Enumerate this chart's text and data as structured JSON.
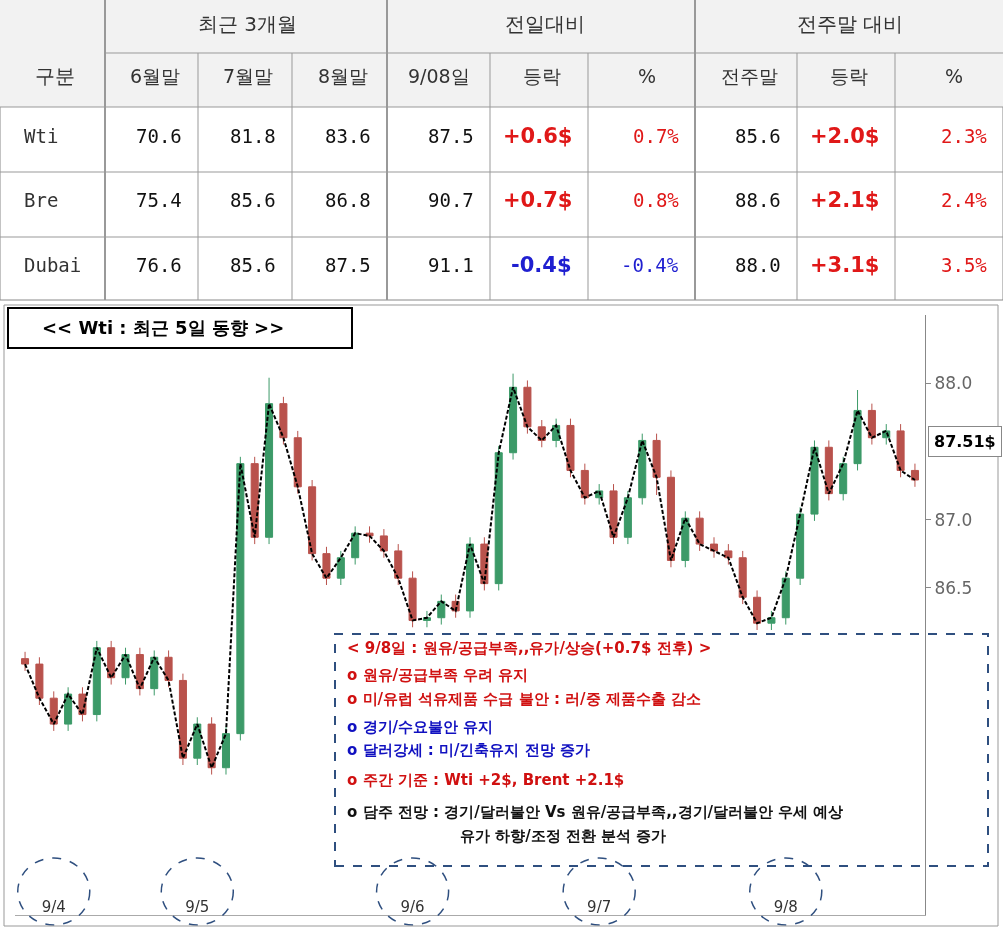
{
  "chart_data": [
    {
      "type": "other",
      "ylabel": "구분",
      "annotations": [
        "최근 3개월",
        "전일대비",
        "전주말 대비"
      ],
      "categories": [
        "6월말",
        "7월말",
        "8월말",
        "9/08일",
        "등락",
        "%",
        "전주말",
        "등락",
        "%"
      ],
      "y_categories": [
        "Wti",
        "Bre",
        "Dubai"
      ],
      "cell_labels": [
        [
          "70.6",
          "81.8",
          "83.6",
          "87.5",
          "+0.6$",
          "0.7%",
          "85.6",
          "+2.0$",
          "2.3%"
        ],
        [
          "75.4",
          "85.6",
          "86.8",
          "90.7",
          "+0.7$",
          "0.8%",
          "88.6",
          "+2.1$",
          "2.4%"
        ],
        [
          "76.6",
          "85.6",
          "87.5",
          "91.1",
          "-0.4$",
          "-0.4%",
          "88.0",
          "+3.1$",
          "3.5%"
        ]
      ]
    },
    {
      "type": "candlestick",
      "title": "<< Wti : 최근 5일 동향 >>",
      "categories": [
        null,
        null,
        "9/4",
        null,
        null,
        null,
        null,
        null,
        null,
        null,
        null,
        null,
        "9/5",
        null,
        null,
        null,
        null,
        null,
        null,
        null,
        null,
        null,
        null,
        null,
        null,
        null,
        null,
        "9/6",
        null,
        null,
        null,
        null,
        null,
        null,
        null,
        null,
        null,
        null,
        null,
        null,
        "9/7",
        null,
        null,
        null,
        null,
        null,
        null,
        null,
        null,
        null,
        null,
        null,
        null,
        "9/8",
        null,
        null,
        null,
        null,
        null,
        null,
        null,
        null,
        null
      ],
      "colors": [
        "#b9524c",
        "#b9524c",
        "#b9524c",
        "#3c9a68",
        "#b9524c",
        "#3c9a68",
        "#b9524c",
        "#3c9a68",
        "#b9524c",
        "#3c9a68",
        "#b9524c",
        "#b9524c",
        "#3c9a68",
        "#b9524c",
        "#3c9a68",
        "#3c9a68",
        "#b9524c",
        "#3c9a68",
        "#b9524c",
        "#b9524c",
        "#b9524c",
        "#b9524c",
        "#3c9a68",
        "#3c9a68",
        "#b9524c",
        "#b9524c",
        "#b9524c",
        "#b9524c",
        "#3c9a68",
        "#3c9a68",
        "#b9524c",
        "#3c9a68",
        "#b9524c",
        "#3c9a68",
        "#3c9a68",
        "#b9524c",
        "#b9524c",
        "#3c9a68",
        "#b9524c",
        "#b9524c",
        "#3c9a68",
        "#b9524c",
        "#3c9a68",
        "#3c9a68",
        "#b9524c",
        "#b9524c",
        "#3c9a68",
        "#b9524c",
        "#b9524c",
        "#b9524c",
        "#b9524c",
        "#b9524c",
        "#3c9a68",
        "#3c9a68",
        "#3c9a68",
        "#3c9a68",
        "#b9524c",
        "#3c9a68",
        "#3c9a68",
        "#b9524c",
        "#3c9a68",
        "#b9524c",
        "#b9524c"
      ],
      "ohlc": [
        [
          85.98,
          86.03,
          85.89,
          85.94
        ],
        [
          85.94,
          85.99,
          85.64,
          85.69
        ],
        [
          85.69,
          85.74,
          85.45,
          85.5
        ],
        [
          85.5,
          85.77,
          85.45,
          85.72
        ],
        [
          85.72,
          85.77,
          85.52,
          85.57
        ],
        [
          85.57,
          86.11,
          85.52,
          86.06
        ],
        [
          86.06,
          86.11,
          85.79,
          85.84
        ],
        [
          85.84,
          86.06,
          85.79,
          86.01
        ],
        [
          86.01,
          86.06,
          85.71,
          85.76
        ],
        [
          85.76,
          86.04,
          85.71,
          85.99
        ],
        [
          85.99,
          86.04,
          85.77,
          85.82
        ],
        [
          85.82,
          85.87,
          85.2,
          85.25
        ],
        [
          85.25,
          85.55,
          85.2,
          85.5
        ],
        [
          85.5,
          85.55,
          85.13,
          85.18
        ],
        [
          85.18,
          85.48,
          85.13,
          85.43
        ],
        [
          85.43,
          87.46,
          85.38,
          87.41
        ],
        [
          87.41,
          87.46,
          86.82,
          86.87
        ],
        [
          86.87,
          88.04,
          86.82,
          87.85
        ],
        [
          87.85,
          87.9,
          87.55,
          87.6
        ],
        [
          87.6,
          87.65,
          87.19,
          87.24
        ],
        [
          87.24,
          87.29,
          86.7,
          86.75
        ],
        [
          86.75,
          86.8,
          86.52,
          86.57
        ],
        [
          86.57,
          86.77,
          86.52,
          86.72
        ],
        [
          86.72,
          86.95,
          86.67,
          86.9
        ],
        [
          86.9,
          86.95,
          86.83,
          86.88
        ],
        [
          86.88,
          86.93,
          86.72,
          86.77
        ],
        [
          86.77,
          86.82,
          86.52,
          86.57
        ],
        [
          86.57,
          86.62,
          86.21,
          86.26
        ],
        [
          86.26,
          86.33,
          86.21,
          86.28
        ],
        [
          86.28,
          86.45,
          86.23,
          86.4
        ],
        [
          86.4,
          86.45,
          86.28,
          86.33
        ],
        [
          86.33,
          86.87,
          86.28,
          86.82
        ],
        [
          86.82,
          86.87,
          86.48,
          86.53
        ],
        [
          86.53,
          87.54,
          86.48,
          87.49
        ],
        [
          87.49,
          88.07,
          87.44,
          87.97
        ],
        [
          87.97,
          88.02,
          87.63,
          87.68
        ],
        [
          87.68,
          87.73,
          87.53,
          87.58
        ],
        [
          87.58,
          87.74,
          87.53,
          87.69
        ],
        [
          87.69,
          87.74,
          87.31,
          87.36
        ],
        [
          87.36,
          87.41,
          87.11,
          87.16
        ],
        [
          87.16,
          87.26,
          87.11,
          87.21
        ],
        [
          87.21,
          87.26,
          86.82,
          86.87
        ],
        [
          86.87,
          87.21,
          86.82,
          87.16
        ],
        [
          87.16,
          87.63,
          87.11,
          87.58
        ],
        [
          87.58,
          87.63,
          87.18,
          87.31
        ],
        [
          87.31,
          87.36,
          86.65,
          86.7
        ],
        [
          86.7,
          87.06,
          86.65,
          87.01
        ],
        [
          87.01,
          87.06,
          86.77,
          86.82
        ],
        [
          86.82,
          86.87,
          86.72,
          86.77
        ],
        [
          86.77,
          86.82,
          86.67,
          86.72
        ],
        [
          86.72,
          86.77,
          86.38,
          86.43
        ],
        [
          86.43,
          86.48,
          86.19,
          86.24
        ],
        [
          86.24,
          86.33,
          86.19,
          86.28
        ],
        [
          86.28,
          86.62,
          86.23,
          86.57
        ],
        [
          86.57,
          87.09,
          86.52,
          87.04
        ],
        [
          87.04,
          87.58,
          86.99,
          87.53
        ],
        [
          87.53,
          87.58,
          87.14,
          87.19
        ],
        [
          87.19,
          87.46,
          87.14,
          87.41
        ],
        [
          87.41,
          87.95,
          87.36,
          87.8
        ],
        [
          87.8,
          87.85,
          87.55,
          87.6
        ],
        [
          87.6,
          87.7,
          87.55,
          87.65
        ],
        [
          87.65,
          87.7,
          87.31,
          87.36
        ],
        [
          87.36,
          87.41,
          87.24,
          87.29
        ]
      ],
      "series": [
        {
          "type": "line",
          "color": "#000000",
          "line_style": "dashed",
          "values": [
            85.94,
            85.69,
            85.5,
            85.72,
            85.57,
            86.06,
            85.84,
            86.01,
            85.76,
            85.99,
            85.82,
            85.25,
            85.5,
            85.18,
            85.43,
            87.41,
            86.87,
            87.85,
            87.6,
            87.24,
            86.75,
            86.57,
            86.72,
            86.9,
            86.88,
            86.77,
            86.57,
            86.26,
            86.28,
            86.4,
            86.33,
            86.82,
            86.53,
            87.49,
            87.97,
            87.68,
            87.58,
            87.69,
            87.36,
            87.16,
            87.21,
            86.87,
            87.16,
            87.58,
            87.31,
            86.7,
            87.01,
            86.82,
            86.77,
            86.72,
            86.43,
            86.24,
            86.28,
            86.57,
            87.04,
            87.53,
            87.19,
            87.41,
            87.8,
            87.6,
            87.65,
            87.36,
            87.29
          ]
        }
      ],
      "ylim": [
        84.1,
        88.5
      ],
      "yticks": [
        86.5,
        {
          "value": 87.0,
          "label": "87.0"
        },
        {
          "value": 88.0,
          "label": "88.0"
        }
      ],
      "annotations": [
        "87.51$",
        "< 9/8일 : 원유/공급부족,,유가/상승(+0.7$ 전후) >",
        "o 원유/공급부족 우려 유지",
        "o 미/유럽 석유제품 수급 불안 : 러/중 제품수출 감소",
        "o 경기/수요불안 유지",
        "o 달러강세 : 미/긴축유지 전망 증가",
        "o 주간 기준 : Wti +2$, Brent +2.1$",
        "o 담주 전망 : 경기/달러불안 Vs 원유/공급부족,,경기/달러불안 우세 예상",
        "유가 하향/조정 전환 분석 증가"
      ]
    }
  ]
}
